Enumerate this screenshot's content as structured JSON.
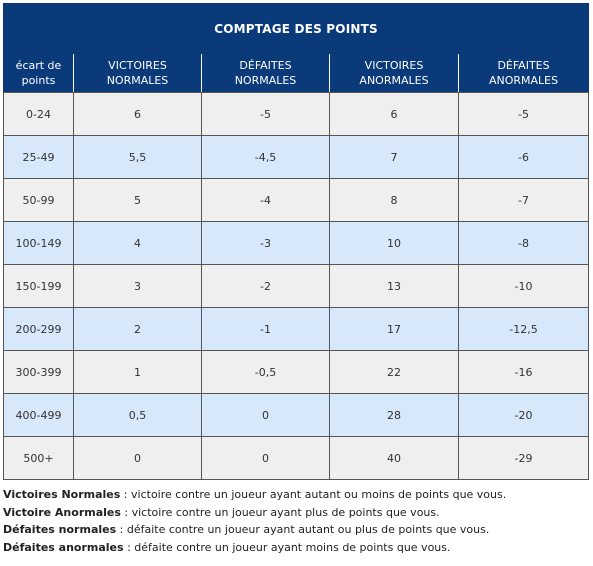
{
  "table": {
    "title": "COMPTAGE DES POINTS",
    "headers": [
      [
        "écart de",
        "points"
      ],
      [
        "VICTOIRES",
        "NORMALES"
      ],
      [
        "DÉFAITES",
        "NORMALES"
      ],
      [
        "VICTOIRES",
        "ANORMALES"
      ],
      [
        "DÉFAITES",
        "ANORMALES"
      ]
    ],
    "rows": [
      [
        "0-24",
        "6",
        "-5",
        "6",
        "-5"
      ],
      [
        "25-49",
        "5,5",
        "-4,5",
        "7",
        "-6"
      ],
      [
        "50-99",
        "5",
        "-4",
        "8",
        "-7"
      ],
      [
        "100-149",
        "4",
        "-3",
        "10",
        "-8"
      ],
      [
        "150-199",
        "3",
        "-2",
        "13",
        "-10"
      ],
      [
        "200-299",
        "2",
        "-1",
        "17",
        "-12,5"
      ],
      [
        "300-399",
        "1",
        "-0,5",
        "22",
        "-16"
      ],
      [
        "400-499",
        "0,5",
        "0",
        "28",
        "-20"
      ],
      [
        "500+",
        "0",
        "0",
        "40",
        "-29"
      ]
    ]
  },
  "legend": [
    {
      "term": "Victoires Normales",
      "sep": " : ",
      "text": "victoire contre un joueur ayant autant ou moins de points que vous."
    },
    {
      "term": "Victoire Anormales",
      "sep": " : ",
      "text": "victoire contre un joueur ayant plus de points que vous."
    },
    {
      "term": "Défaites normales",
      "sep": " : ",
      "text": "défaite contre un joueur ayant autant ou plus de points que vous."
    },
    {
      "term": "Défaites anormales",
      "sep": " : ",
      "text": "défaite contre un joueur ayant moins de points que vous."
    }
  ],
  "colors": {
    "header_bg": "#0b3a7a",
    "row_odd": "#efefef",
    "row_even": "#d7e8fb"
  }
}
